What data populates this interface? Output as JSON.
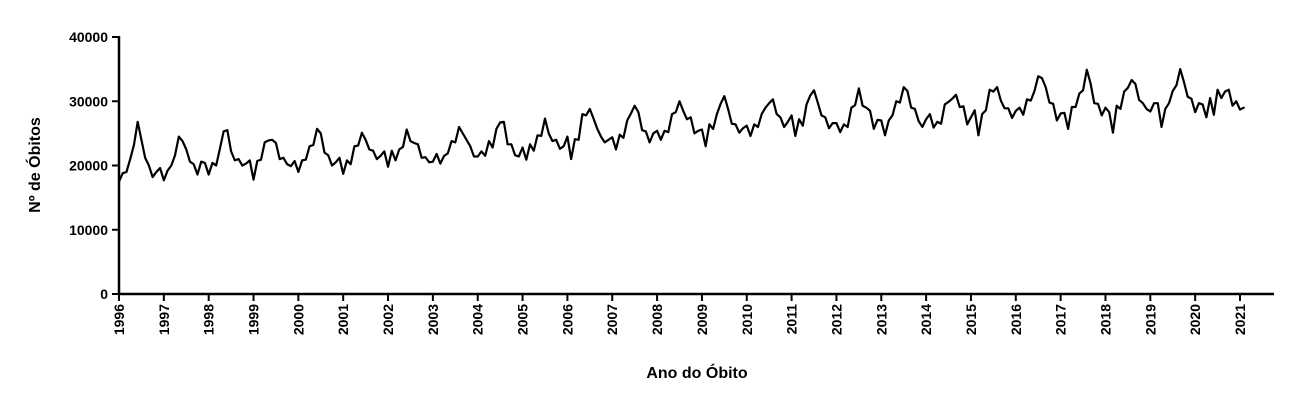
{
  "chart_data": {
    "type": "line",
    "title": "",
    "xlabel": "Ano do Óbito",
    "ylabel": "Nº de Óbitos",
    "xlim": [
      1996,
      2021
    ],
    "ylim": [
      0,
      40000
    ],
    "x_ticks": [
      "1996",
      "1997",
      "1998",
      "1999",
      "2000",
      "2001",
      "2002",
      "2003",
      "2004",
      "2005",
      "2006",
      "2007",
      "2008",
      "2009",
      "2010",
      "2011",
      "2012",
      "2013",
      "2014",
      "2015",
      "2016",
      "2017",
      "2018",
      "2019",
      "2020",
      "2021"
    ],
    "y_ticks": [
      "0",
      "10000",
      "20000",
      "30000",
      "40000"
    ],
    "grid": false,
    "legend": "none",
    "colors": {
      "line": "#000000",
      "axis": "#000000"
    },
    "series": [
      {
        "x_start": 1996,
        "step_years": 0.0833333,
        "values": [
          17500,
          18800,
          19000,
          21000,
          23200,
          26800,
          24000,
          21200,
          20000,
          18200,
          19000,
          19600,
          17700,
          19200,
          20000,
          21600,
          24500,
          23800,
          22500,
          20600,
          20200,
          18600,
          20600,
          20400,
          18600,
          20400,
          20000,
          22600,
          25300,
          25500,
          22200,
          20800,
          21000,
          20000,
          20300,
          20800,
          17800,
          20700,
          20900,
          23600,
          23900,
          24000,
          23500,
          21000,
          21200,
          20200,
          19900,
          20700,
          19000,
          20800,
          20900,
          23000,
          23200,
          25700,
          25000,
          22000,
          21600,
          20000,
          20500,
          21200,
          18700,
          20800,
          20200,
          23000,
          23100,
          25100,
          24000,
          22500,
          22300,
          21000,
          21500,
          22200,
          19800,
          22300,
          20800,
          22500,
          22900,
          25600,
          23800,
          23500,
          23300,
          21200,
          21300,
          20500,
          20600,
          21800,
          20300,
          21500,
          21900,
          23800,
          23600,
          26000,
          25000,
          24000,
          23000,
          21400,
          21400,
          22200,
          21500,
          23800,
          22800,
          25700,
          26700,
          26800,
          23300,
          23300,
          21600,
          21400,
          22800,
          20900,
          23300,
          22300,
          24700,
          24600,
          27300,
          25000,
          23800,
          24000,
          22600,
          23000,
          24500,
          21000,
          24100,
          24000,
          28000,
          27800,
          28800,
          27300,
          25700,
          24500,
          23600,
          24000,
          24400,
          22500,
          24800,
          24300,
          27000,
          28100,
          29300,
          28300,
          25500,
          25300,
          23600,
          25000,
          25400,
          24000,
          25400,
          25200,
          28000,
          28300,
          30000,
          28500,
          27200,
          27500,
          25000,
          25400,
          25600,
          23000,
          26400,
          25700,
          28000,
          29600,
          30800,
          28800,
          26500,
          26400,
          25100,
          25800,
          26200,
          24600,
          26400,
          26000,
          28000,
          29000,
          29700,
          30300,
          28000,
          27500,
          26000,
          26800,
          27800,
          24600,
          27200,
          26200,
          29500,
          30900,
          31700,
          29800,
          27800,
          27500,
          25800,
          26600,
          26600,
          25200,
          26400,
          26000,
          29000,
          29400,
          32000,
          29300,
          29000,
          28500,
          25700,
          27100,
          27000,
          24700,
          27000,
          27800,
          30000,
          29800,
          32200,
          31600,
          29000,
          28800,
          26900,
          26000,
          27200,
          28000,
          25900,
          26800,
          26500,
          29500,
          29900,
          30400,
          31000,
          29100,
          29200,
          26400,
          27500,
          28600,
          24700,
          28000,
          28600,
          31800,
          31500,
          32200,
          30100,
          28900,
          28900,
          27400,
          28500,
          29000,
          27900,
          30300,
          30100,
          31600,
          33900,
          33600,
          32200,
          29800,
          29600,
          27000,
          28100,
          28200,
          25700,
          29100,
          29100,
          31200,
          31700,
          34900,
          32800,
          29700,
          29600,
          27800,
          29000,
          28300,
          25100,
          29300,
          28800,
          31500,
          32100,
          33300,
          32700,
          30200,
          29700,
          28800,
          28400,
          29700,
          29700,
          26000,
          28800,
          29700,
          31600,
          32500,
          35000,
          33000,
          30700,
          30400,
          28300,
          29700,
          29500,
          27500,
          30500,
          27900,
          31800,
          30500,
          31500,
          31800,
          29300,
          30000,
          28700,
          29000
        ]
      }
    ]
  }
}
